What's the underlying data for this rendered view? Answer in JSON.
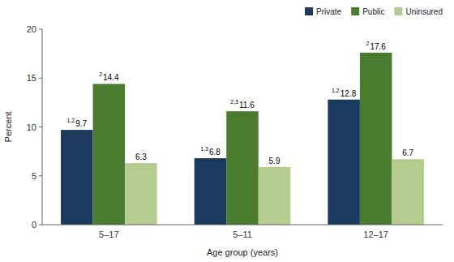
{
  "chart_data": {
    "type": "bar",
    "categories": [
      "5–17",
      "5–11",
      "12–17"
    ],
    "series": [
      {
        "name": "Private",
        "color": "#1b3a5e",
        "values": [
          9.7,
          6.8,
          12.8
        ],
        "annotations": [
          "1,2",
          "1,3",
          "1,2"
        ]
      },
      {
        "name": "Public",
        "color": "#4a7c2f",
        "values": [
          14.4,
          11.6,
          17.6
        ],
        "annotations": [
          "2",
          "2,3",
          "2"
        ]
      },
      {
        "name": "Uninsured",
        "color": "#b5cc8e",
        "values": [
          6.3,
          5.9,
          6.7
        ]
      }
    ],
    "xlabel": "Age group (years)",
    "ylabel": "Percent",
    "ylim": [
      0,
      20
    ],
    "yticks": [
      0,
      5,
      10,
      15,
      20
    ],
    "grid": false,
    "legend": "top-right",
    "data_labels": true
  }
}
